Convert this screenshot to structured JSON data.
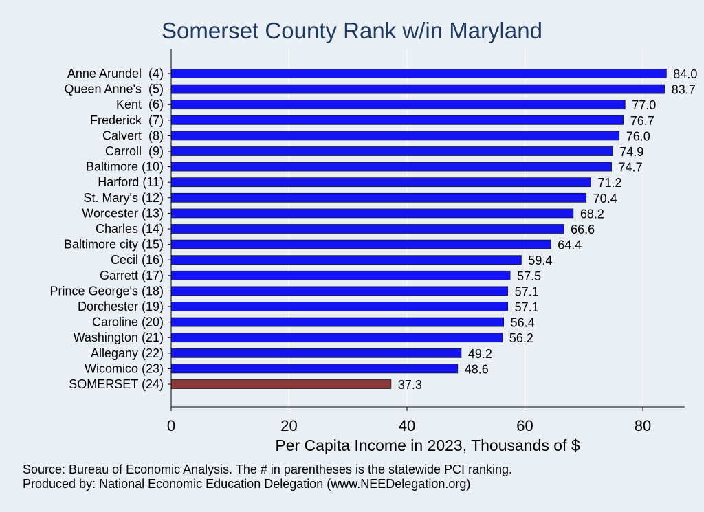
{
  "chart_data": {
    "type": "bar",
    "orientation": "horizontal",
    "title": "Somerset County Rank w/in Maryland",
    "xlabel": "Per Capita Income in 2023, Thousands of $",
    "ylabel": "",
    "xlim": [
      0,
      87
    ],
    "xticks": [
      "0",
      "20",
      "40",
      "60",
      "80"
    ],
    "grid": true,
    "categories": [
      "Anne Arundel  (4)",
      "Queen Anne's  (5)",
      "Kent  (6)",
      "Frederick  (7)",
      "Calvert  (8)",
      "Carroll  (9)",
      "Baltimore (10)",
      "Harford (11)",
      "St. Mary's (12)",
      "Worcester (13)",
      "Charles (14)",
      "Baltimore city (15)",
      "Cecil (16)",
      "Garrett (17)",
      "Prince George's (18)",
      "Dorchester (19)",
      "Caroline (20)",
      "Washington (21)",
      "Allegany (22)",
      "Wicomico (23)",
      "SOMERSET (24)"
    ],
    "values": [
      84.0,
      83.7,
      77.0,
      76.7,
      76.0,
      74.9,
      74.7,
      71.2,
      70.4,
      68.2,
      66.6,
      64.4,
      59.4,
      57.5,
      57.1,
      57.1,
      56.4,
      56.2,
      49.2,
      48.6,
      37.3
    ],
    "value_labels": [
      "84.0",
      "83.7",
      "77.0",
      "76.7",
      "76.0",
      "74.9",
      "74.7",
      "71.2",
      "70.4",
      "68.2",
      "66.6",
      "64.4",
      "59.4",
      "57.5",
      "57.1",
      "57.1",
      "56.4",
      "56.2",
      "49.2",
      "48.6",
      "37.3"
    ],
    "highlight_index": 20,
    "colors": {
      "bar": "#1414f0",
      "highlight": "#8b3a3a",
      "grid": "#ffffff",
      "background": "#e9eff3",
      "title": "#1f3a60"
    }
  },
  "notes": {
    "source": "Source: Bureau of Economic Analysis. The # in parentheses is the statewide PCI ranking.",
    "producer": "Produced by: National Economic Education Delegation (www.NEEDelegation.org)"
  }
}
